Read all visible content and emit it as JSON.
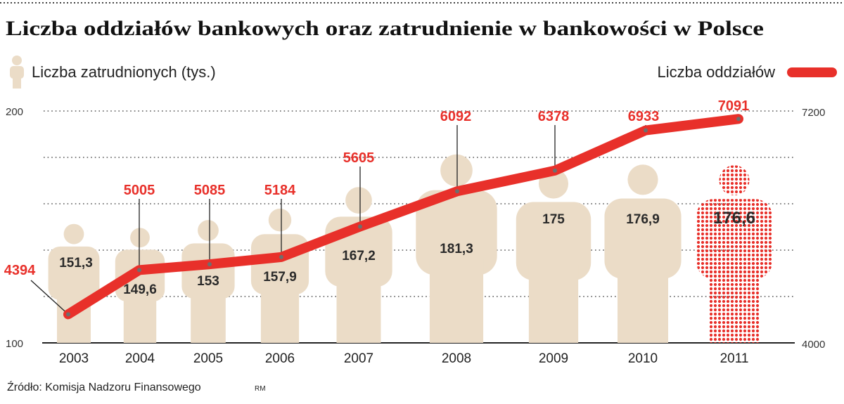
{
  "title": "Liczba oddziałów bankowych oraz zatrudnienie w bankowości w Polsce",
  "legend": {
    "employment_label": "Liczba zatrudnionych (tys.)",
    "branches_label": "Liczba oddziałów"
  },
  "source": "Źródło: Komisja Nadzoru Finansowego",
  "author": "RM",
  "colors": {
    "branches": "#e8302a",
    "employment": "#ebdcc7",
    "text": "#222222",
    "marker": "#6e6e6e"
  },
  "chart_data": {
    "type": "bar",
    "categories": [
      "2003",
      "2004",
      "2005",
      "2006",
      "2007",
      "2008",
      "2009",
      "2010",
      "2011"
    ],
    "series": [
      {
        "name": "Liczba zatrudnionych (tys.)",
        "type": "bar",
        "axis": "left",
        "values": [
          151.3,
          149.6,
          153,
          157.9,
          167.2,
          181.3,
          175,
          176.9,
          176.6
        ],
        "labels": [
          "151,3",
          "149,6",
          "153",
          "157,9",
          "167,2",
          "181,3",
          "175",
          "176,9",
          "176,6"
        ]
      },
      {
        "name": "Liczba oddziałów",
        "type": "line",
        "axis": "right",
        "values": [
          4394,
          5005,
          5085,
          5184,
          5605,
          6092,
          6378,
          6933,
          7091
        ]
      }
    ],
    "left_axis": {
      "range": [
        100,
        200
      ],
      "ticks": [
        "100",
        "200"
      ]
    },
    "right_axis": {
      "range": [
        4000,
        7200
      ],
      "ticks": [
        "4000",
        "7200"
      ]
    },
    "grid": true,
    "highlighted_category": "2011"
  }
}
